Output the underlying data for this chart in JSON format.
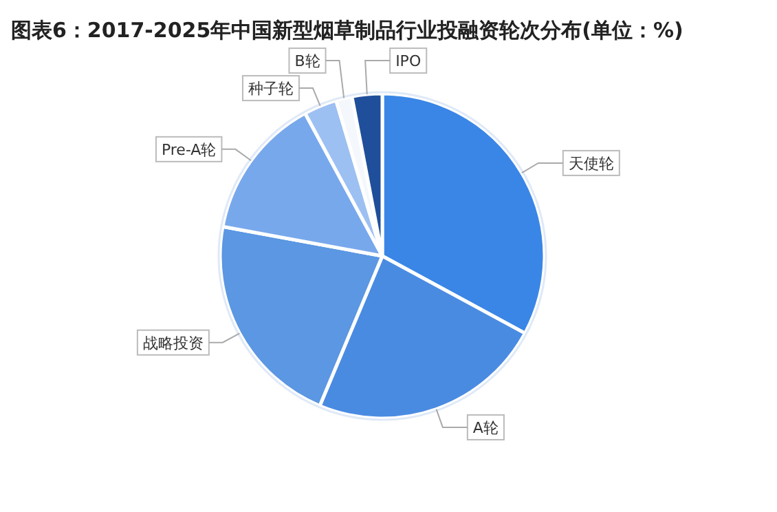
{
  "chart_data": {
    "type": "pie",
    "title": "图表6：2017-2025年中国新型烟草制品行业投融资轮次分布(单位：%)",
    "categories": [
      "天使轮",
      "A轮",
      "战略投资",
      "Pre-A轮",
      "种子轮",
      "B轮",
      "IPO"
    ],
    "values": [
      32.9,
      23.4,
      21.6,
      14.2,
      3.3,
      1.6,
      3.0
    ],
    "colors": [
      "#3a86e6",
      "#4a8be2",
      "#5b97e2",
      "#78a8ec",
      "#9dc0f2",
      "#f4f7fc",
      "#1f4f9a"
    ],
    "legend": false
  }
}
